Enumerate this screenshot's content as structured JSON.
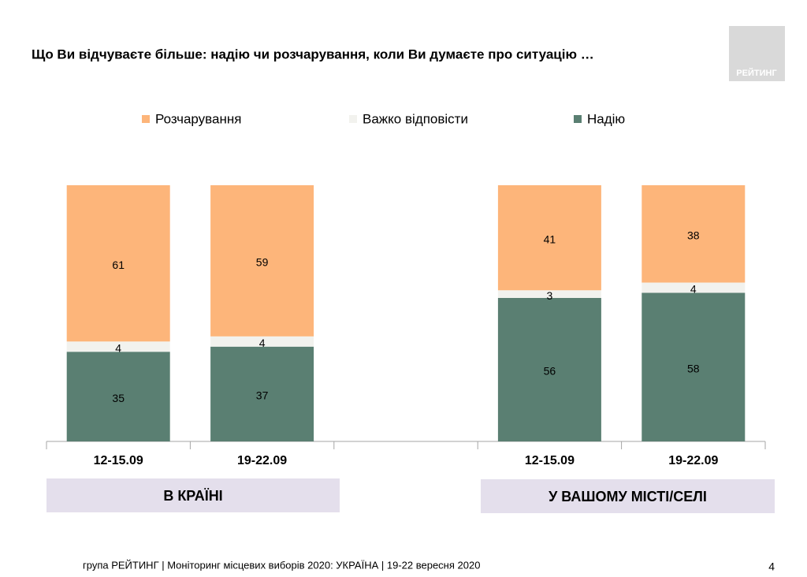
{
  "chart_data": {
    "type": "stacked_bar",
    "title": "Що Ви відчуваєте більше: надію чи розчарування, коли Ви думаєте про ситуацію …",
    "categories": [
      "12-15.09",
      "19-22.09",
      null,
      "12-15.09",
      "19-22.09"
    ],
    "groups": [
      "В КРАЇНІ",
      "У ВАШОМУ МІСТІ/СЕЛІ"
    ],
    "series": [
      {
        "name": "Розчарування",
        "color": "#fdb57a",
        "values": [
          61,
          59,
          null,
          41,
          38
        ]
      },
      {
        "name": "Важко відповісти",
        "color": "#f2f2ee",
        "values": [
          4,
          4,
          null,
          3,
          4
        ]
      },
      {
        "name": "Надію",
        "color": "#5a7f72",
        "values": [
          35,
          37,
          null,
          56,
          58
        ]
      }
    ],
    "legend": "top"
  },
  "logo": "РЕЙТИНГ",
  "footer": "група РЕЙТИНГ | Моніторинг місцевих виборів 2020: УКРАЇНА | 19-22 вересня 2020",
  "page_number": "4"
}
